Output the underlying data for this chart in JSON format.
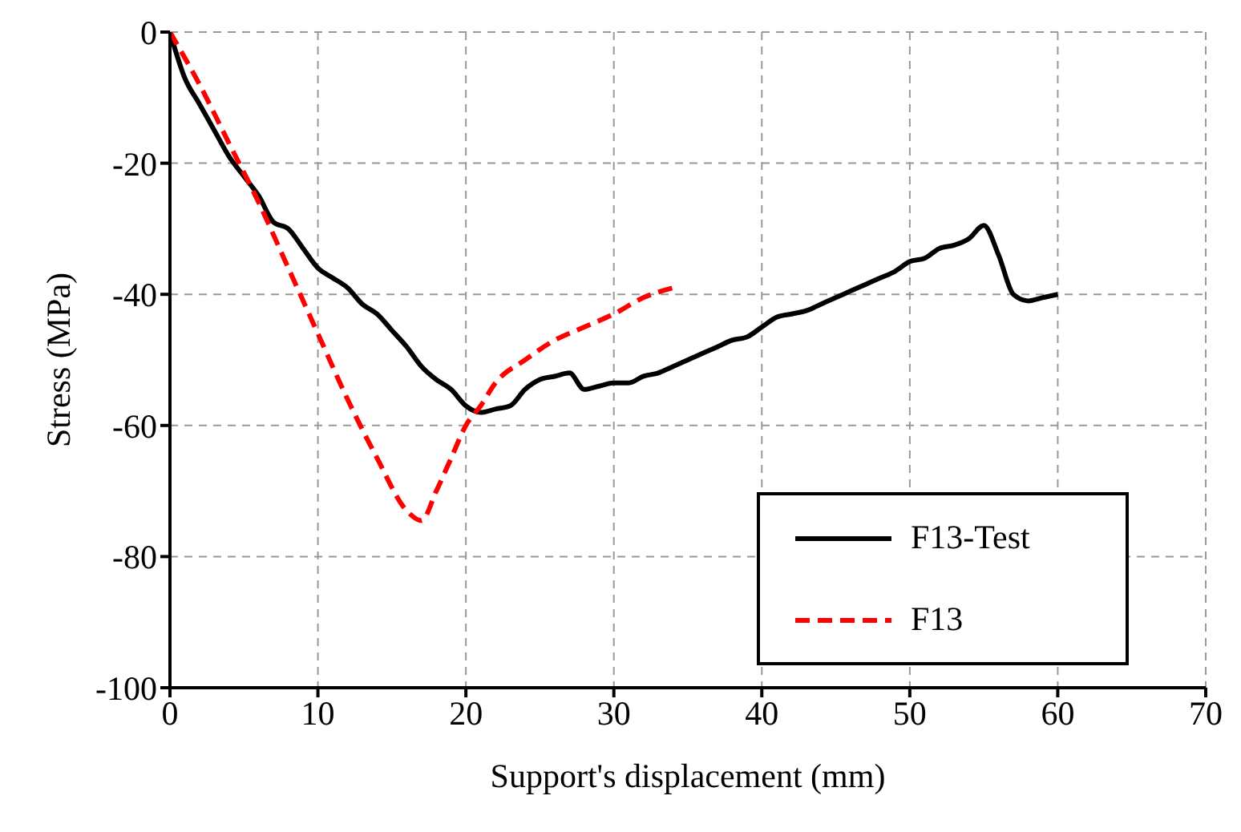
{
  "chart_data": {
    "type": "line",
    "xlabel": "Support's displacement (mm)",
    "ylabel": "Stress (MPa)",
    "xlim": [
      0,
      70
    ],
    "xticks": [
      0,
      10,
      20,
      30,
      40,
      50,
      60,
      70
    ],
    "ylim": [
      -100,
      0
    ],
    "yticks": [
      -100,
      -80,
      -60,
      -40,
      -20,
      0
    ],
    "grid": true,
    "legend": "bottom right",
    "marker": "none",
    "series": [
      {
        "name": "F13-Test",
        "color": "#000000",
        "line_style": "solid",
        "x": [
          0,
          1,
          2,
          3,
          4,
          5,
          6,
          7,
          8,
          9,
          10,
          11,
          12,
          13,
          14,
          15,
          16,
          17,
          18,
          19,
          20,
          21,
          22,
          23,
          24,
          25,
          26,
          27,
          28,
          29,
          30,
          31,
          32,
          33,
          34,
          35,
          36,
          37,
          38,
          39,
          40,
          41,
          42,
          43,
          44,
          45,
          46,
          47,
          48,
          49,
          50,
          51,
          52,
          53,
          54,
          55,
          56,
          57,
          58,
          59,
          60
        ],
        "values": [
          0,
          -7,
          -11,
          -15,
          -19,
          -22,
          -25,
          -29,
          -30,
          -33,
          -36,
          -37.5,
          -39,
          -41.5,
          -43,
          -45.5,
          -48,
          -51,
          -53,
          -54.5,
          -57,
          -58,
          -57.5,
          -57,
          -54.5,
          -53,
          -52.5,
          -52,
          -54.5,
          -54,
          -53.5,
          -53.5,
          -52.5,
          -52,
          -51,
          -50,
          -49,
          -48,
          -47,
          -46.5,
          -45,
          -43.5,
          -43,
          -42.5,
          -41.5,
          -40.5,
          -39.5,
          -38.5,
          -37.5,
          -36.5,
          -35,
          -34.5,
          -33,
          -32.5,
          -31.5,
          -29.5,
          -34,
          -40,
          -41,
          -40.5,
          -40
        ]
      },
      {
        "name": "F13",
        "color": "#ff0000",
        "line_style": "dashed",
        "x": [
          0,
          2,
          4,
          6,
          8,
          10,
          12,
          14,
          16,
          17,
          18,
          19,
          20,
          21,
          22,
          24,
          26,
          28,
          30,
          32,
          34
        ],
        "values": [
          0,
          -8,
          -17,
          -26,
          -36,
          -46,
          -56,
          -65,
          -73,
          -74.5,
          -70,
          -65,
          -60,
          -57,
          -53.5,
          -50,
          -47,
          -45,
          -43,
          -40.5,
          -39
        ]
      }
    ]
  }
}
